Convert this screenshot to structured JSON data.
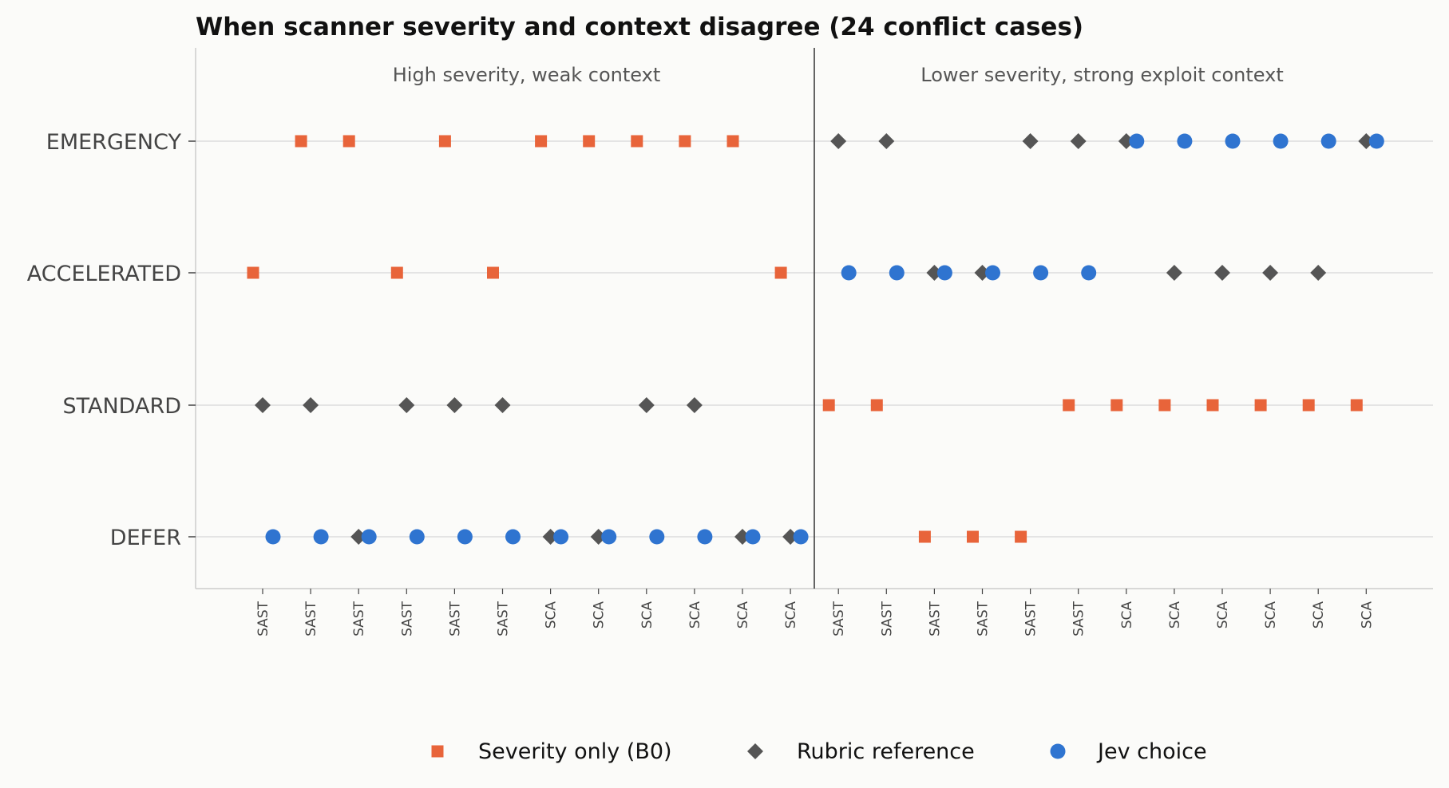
{
  "chart_data": {
    "type": "scatter",
    "title": "When scanner severity and context disagree (24 conflict cases)",
    "y_categories": [
      "DEFER",
      "STANDARD",
      "ACCELERATED",
      "EMERGENCY"
    ],
    "x_categories": [
      "SAST",
      "SAST",
      "SAST",
      "SAST",
      "SAST",
      "SAST",
      "SCA",
      "SCA",
      "SCA",
      "SCA",
      "SCA",
      "SCA",
      "SAST",
      "SAST",
      "SAST",
      "SAST",
      "SAST",
      "SAST",
      "SCA",
      "SCA",
      "SCA",
      "SCA",
      "SCA",
      "SCA"
    ],
    "panels": [
      {
        "label": "High severity, weak context",
        "cases": [
          1,
          12
        ]
      },
      {
        "label": "Lower severity, strong exploit context",
        "cases": [
          13,
          24
        ]
      }
    ],
    "series": [
      {
        "name": "Severity only (B0)",
        "marker": "square",
        "color": "#e8643a",
        "values": [
          "ACCELERATED",
          "EMERGENCY",
          "EMERGENCY",
          "ACCELERATED",
          "EMERGENCY",
          "ACCELERATED",
          "EMERGENCY",
          "EMERGENCY",
          "EMERGENCY",
          "EMERGENCY",
          "EMERGENCY",
          "ACCELERATED",
          "STANDARD",
          "STANDARD",
          "DEFER",
          "DEFER",
          "DEFER",
          "STANDARD",
          "STANDARD",
          "STANDARD",
          "STANDARD",
          "STANDARD",
          "STANDARD",
          "STANDARD"
        ]
      },
      {
        "name": "Rubric reference",
        "marker": "diamond",
        "color": "#555555",
        "values": [
          "STANDARD",
          "STANDARD",
          "DEFER",
          "STANDARD",
          "STANDARD",
          "STANDARD",
          "DEFER",
          "DEFER",
          "STANDARD",
          "STANDARD",
          "DEFER",
          "DEFER",
          "EMERGENCY",
          "EMERGENCY",
          "ACCELERATED",
          "ACCELERATED",
          "EMERGENCY",
          "EMERGENCY",
          "EMERGENCY",
          "ACCELERATED",
          "ACCELERATED",
          "ACCELERATED",
          "ACCELERATED",
          "EMERGENCY"
        ]
      },
      {
        "name": "Jev choice",
        "marker": "circle",
        "color": "#2f74d0",
        "values": [
          "DEFER",
          "DEFER",
          "DEFER",
          "DEFER",
          "DEFER",
          "DEFER",
          "DEFER",
          "DEFER",
          "DEFER",
          "DEFER",
          "DEFER",
          "DEFER",
          "ACCELERATED",
          "ACCELERATED",
          "ACCELERATED",
          "ACCELERATED",
          "ACCELERATED",
          "ACCELERATED",
          "EMERGENCY",
          "EMERGENCY",
          "EMERGENCY",
          "EMERGENCY",
          "EMERGENCY",
          "EMERGENCY"
        ]
      }
    ],
    "legend_position": "bottom-center",
    "grid": "horizontal"
  }
}
